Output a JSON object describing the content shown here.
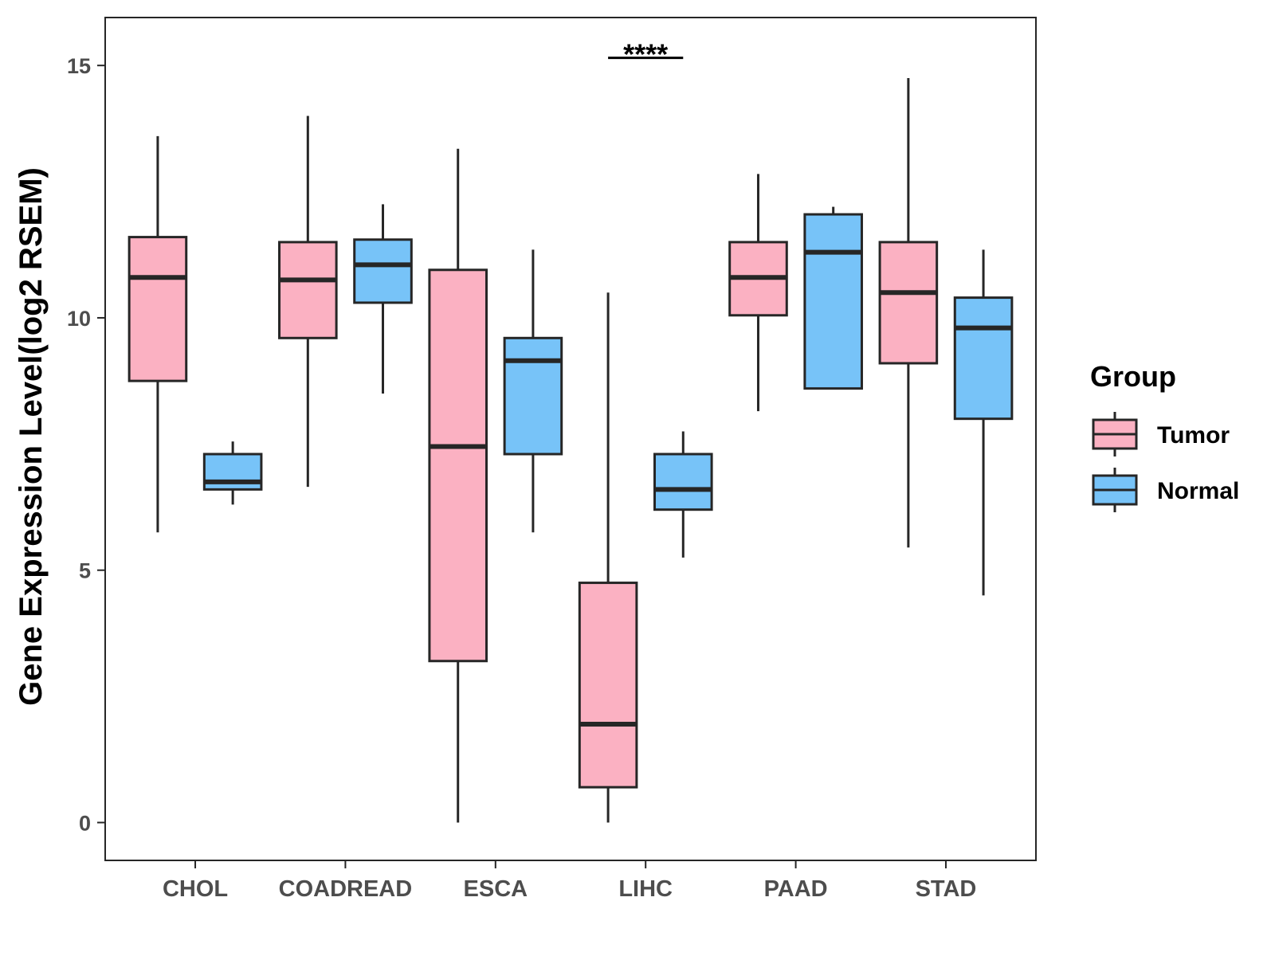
{
  "chart_data": {
    "type": "boxplot",
    "title": "",
    "xlabel": "",
    "ylabel": "Gene Expression Level(log2 RSEM)",
    "ylim": [
      -0.75,
      15.95
    ],
    "yticks": [
      0,
      5,
      10,
      15
    ],
    "categories": [
      "CHOL",
      "COADREAD",
      "ESCA",
      "LIHC",
      "PAAD",
      "STAD"
    ],
    "series": [
      {
        "name": "Tumor",
        "color": "#FBB1C2",
        "boxes": [
          {
            "category": "CHOL",
            "min": 5.75,
            "q1": 8.75,
            "median": 10.8,
            "q3": 11.6,
            "max": 13.6
          },
          {
            "category": "COADREAD",
            "min": 6.65,
            "q1": 9.6,
            "median": 10.75,
            "q3": 11.5,
            "max": 14.0
          },
          {
            "category": "ESCA",
            "min": 0.0,
            "q1": 3.2,
            "median": 7.45,
            "q3": 10.95,
            "max": 13.35
          },
          {
            "category": "LIHC",
            "min": 0.0,
            "q1": 0.7,
            "median": 1.95,
            "q3": 4.75,
            "max": 10.5
          },
          {
            "category": "PAAD",
            "min": 8.15,
            "q1": 10.05,
            "median": 10.8,
            "q3": 11.5,
            "max": 12.85
          },
          {
            "category": "STAD",
            "min": 5.45,
            "q1": 9.1,
            "median": 10.5,
            "q3": 11.5,
            "max": 14.75
          }
        ]
      },
      {
        "name": "Normal",
        "color": "#77C3F8",
        "boxes": [
          {
            "category": "CHOL",
            "min": 6.3,
            "q1": 6.6,
            "median": 6.75,
            "q3": 7.3,
            "max": 7.55
          },
          {
            "category": "COADREAD",
            "min": 8.5,
            "q1": 10.3,
            "median": 11.05,
            "q3": 11.55,
            "max": 12.25
          },
          {
            "category": "ESCA",
            "min": 5.75,
            "q1": 7.3,
            "median": 9.15,
            "q3": 9.6,
            "max": 11.35
          },
          {
            "category": "LIHC",
            "min": 5.25,
            "q1": 6.2,
            "median": 6.6,
            "q3": 7.3,
            "max": 7.75
          },
          {
            "category": "PAAD",
            "min": 8.6,
            "q1": 8.6,
            "median": 11.3,
            "q3": 12.05,
            "max": 12.2
          },
          {
            "category": "STAD",
            "min": 4.5,
            "q1": 8.0,
            "median": 9.8,
            "q3": 10.4,
            "max": 11.35
          }
        ]
      }
    ],
    "annotations": [
      {
        "category": "LIHC",
        "text": "****",
        "y": 15.15
      }
    ],
    "legend": {
      "title": "Group",
      "position": "right",
      "items": [
        "Tumor",
        "Normal"
      ]
    },
    "grid": false
  }
}
